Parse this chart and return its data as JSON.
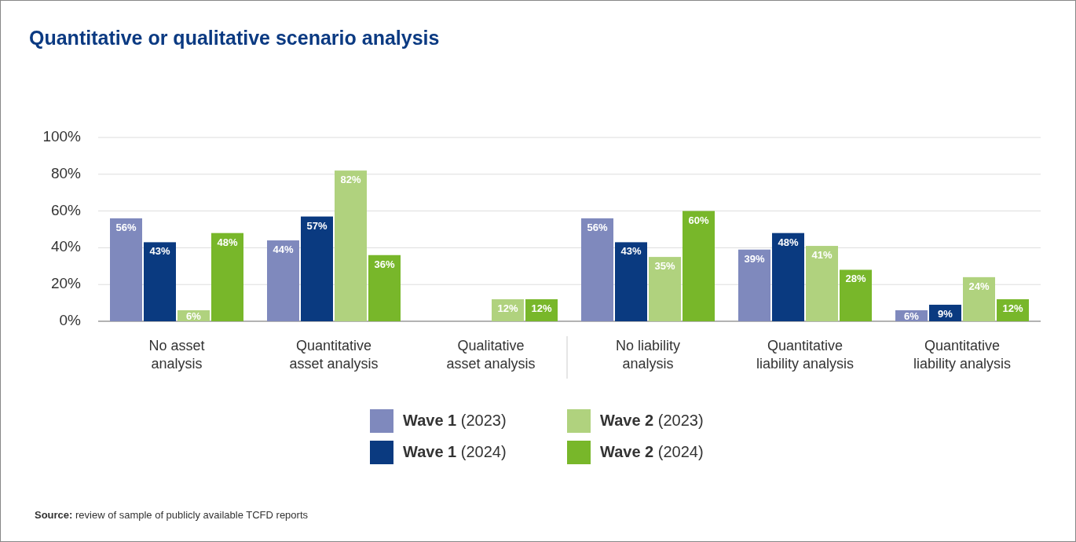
{
  "chart_data": {
    "type": "bar",
    "title": "Quantitative or qualitative scenario analysis",
    "categories": [
      "No asset\nanalysis",
      "Quantitative\nasset analysis",
      "Qualitative\nasset analysis",
      "No liability\nanalysis",
      "Quantitative\nliability analysis",
      "Quantitative\nliability analysis"
    ],
    "series": [
      {
        "name": "Wave 1 (2023)",
        "color": "#7f89bd",
        "values": [
          56,
          44,
          null,
          56,
          39,
          6
        ],
        "value_labels": [
          "56%",
          "44%",
          null,
          "56%",
          "39%",
          "6%"
        ]
      },
      {
        "name": "Wave 1 (2024)",
        "color": "#0a3a80",
        "values": [
          43,
          57,
          null,
          43,
          48,
          9
        ],
        "value_labels": [
          "43%",
          "57%",
          null,
          "43%",
          "48%",
          "9%"
        ]
      },
      {
        "name": "Wave 2 (2023)",
        "color": "#b0d27e",
        "values": [
          6,
          82,
          12,
          35,
          41,
          24
        ],
        "value_labels": [
          "6%",
          "82%",
          "12%",
          "35%",
          "41%",
          "24%"
        ]
      },
      {
        "name": "Wave 2 (2024)",
        "color": "#78b72a",
        "values": [
          48,
          36,
          12,
          60,
          28,
          12
        ],
        "value_labels": [
          "48%",
          "36%",
          "12%",
          "60%",
          "28%",
          "12%"
        ]
      }
    ],
    "ylim": [
      0,
      100
    ],
    "yticks": [
      {
        "value": 0,
        "label": "0%"
      },
      {
        "value": 20,
        "label": "20%"
      },
      {
        "value": 40,
        "label": "40%"
      },
      {
        "value": 60,
        "label": "60%"
      },
      {
        "value": 80,
        "label": "80%"
      },
      {
        "value": 100,
        "label": "100%"
      }
    ],
    "grid": "y",
    "legend": "bottom",
    "annotations": [
      "Source: review of sample of publicly available TCFD reports"
    ]
  }
}
